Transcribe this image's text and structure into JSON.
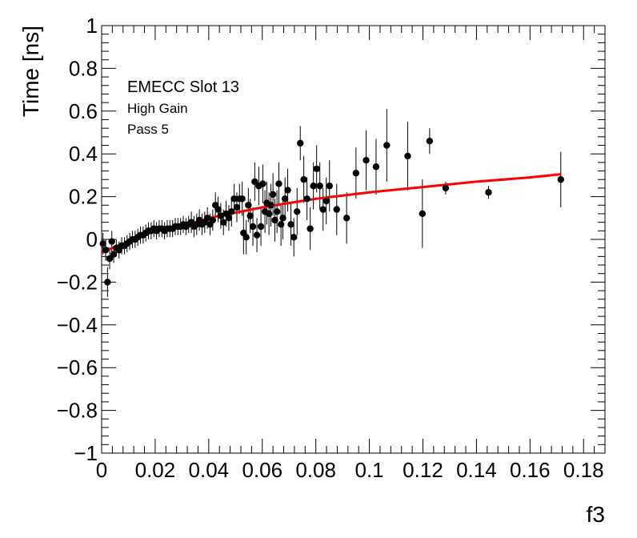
{
  "chart_data": {
    "type": "scatter",
    "xlabel": "f3",
    "ylabel": "Time [ns]",
    "xlim": [
      0,
      0.188
    ],
    "ylim": [
      -1,
      1
    ],
    "x_ticks": [
      0,
      0.02,
      0.04,
      0.06,
      0.08,
      0.1,
      0.12,
      0.14,
      0.16,
      0.18
    ],
    "x_tick_labels": [
      "0",
      "0.02",
      "0.04",
      "0.06",
      "0.08",
      "0.1",
      "0.12",
      "0.14",
      "0.16",
      "0.18"
    ],
    "y_ticks": [
      -1,
      -0.8,
      -0.6,
      -0.4,
      -0.2,
      0,
      0.2,
      0.4,
      0.6,
      0.8,
      1
    ],
    "y_tick_labels": [
      "−1",
      "−0.8",
      "−0.6",
      "−0.4",
      "−0.2",
      "0",
      "0.2",
      "0.4",
      "0.6",
      "0.8",
      "1"
    ],
    "annotations": [
      "EMECC Slot 13",
      "High Gain",
      "Pass 5"
    ],
    "grid": false,
    "colors": {
      "points": "#000000",
      "fit": "#ff0000"
    },
    "series": [
      {
        "kind": "points-with-errors",
        "points": [
          {
            "x": 0.0005,
            "y": -0.02,
            "e": 0.05
          },
          {
            "x": 0.0015,
            "y": -0.05,
            "e": 0.05
          },
          {
            "x": 0.0022,
            "y": -0.2,
            "e": 0.07
          },
          {
            "x": 0.003,
            "y": -0.09,
            "e": 0.05
          },
          {
            "x": 0.0038,
            "y": -0.01,
            "e": 0.05
          },
          {
            "x": 0.0045,
            "y": -0.07,
            "e": 0.04
          },
          {
            "x": 0.0055,
            "y": -0.04,
            "e": 0.04
          },
          {
            "x": 0.0065,
            "y": -0.05,
            "e": 0.04
          },
          {
            "x": 0.0075,
            "y": -0.03,
            "e": 0.04
          },
          {
            "x": 0.0085,
            "y": -0.03,
            "e": 0.04
          },
          {
            "x": 0.0095,
            "y": -0.02,
            "e": 0.04
          },
          {
            "x": 0.0105,
            "y": -0.01,
            "e": 0.04
          },
          {
            "x": 0.0115,
            "y": 0.0,
            "e": 0.04
          },
          {
            "x": 0.0125,
            "y": 0.0,
            "e": 0.04
          },
          {
            "x": 0.0135,
            "y": 0.01,
            "e": 0.04
          },
          {
            "x": 0.0145,
            "y": 0.02,
            "e": 0.04
          },
          {
            "x": 0.0155,
            "y": 0.02,
            "e": 0.04
          },
          {
            "x": 0.0165,
            "y": 0.03,
            "e": 0.04
          },
          {
            "x": 0.0175,
            "y": 0.04,
            "e": 0.04
          },
          {
            "x": 0.0185,
            "y": 0.04,
            "e": 0.04
          },
          {
            "x": 0.0195,
            "y": 0.05,
            "e": 0.04
          },
          {
            "x": 0.0205,
            "y": 0.04,
            "e": 0.04
          },
          {
            "x": 0.0215,
            "y": 0.05,
            "e": 0.04
          },
          {
            "x": 0.0225,
            "y": 0.05,
            "e": 0.04
          },
          {
            "x": 0.0235,
            "y": 0.04,
            "e": 0.04
          },
          {
            "x": 0.0245,
            "y": 0.05,
            "e": 0.04
          },
          {
            "x": 0.0255,
            "y": 0.05,
            "e": 0.04
          },
          {
            "x": 0.0265,
            "y": 0.05,
            "e": 0.04
          },
          {
            "x": 0.0275,
            "y": 0.06,
            "e": 0.04
          },
          {
            "x": 0.0285,
            "y": 0.06,
            "e": 0.04
          },
          {
            "x": 0.0295,
            "y": 0.06,
            "e": 0.04
          },
          {
            "x": 0.0305,
            "y": 0.07,
            "e": 0.04
          },
          {
            "x": 0.0315,
            "y": 0.06,
            "e": 0.04
          },
          {
            "x": 0.0325,
            "y": 0.07,
            "e": 0.04
          },
          {
            "x": 0.0335,
            "y": 0.08,
            "e": 0.05
          },
          {
            "x": 0.0345,
            "y": 0.06,
            "e": 0.05
          },
          {
            "x": 0.0355,
            "y": 0.07,
            "e": 0.05
          },
          {
            "x": 0.0365,
            "y": 0.09,
            "e": 0.05
          },
          {
            "x": 0.0375,
            "y": 0.07,
            "e": 0.05
          },
          {
            "x": 0.0385,
            "y": 0.08,
            "e": 0.05
          },
          {
            "x": 0.0395,
            "y": 0.1,
            "e": 0.05
          },
          {
            "x": 0.0405,
            "y": 0.07,
            "e": 0.05
          },
          {
            "x": 0.0415,
            "y": 0.09,
            "e": 0.05
          },
          {
            "x": 0.0425,
            "y": 0.16,
            "e": 0.06
          },
          {
            "x": 0.0435,
            "y": 0.14,
            "e": 0.06
          },
          {
            "x": 0.0445,
            "y": 0.11,
            "e": 0.06
          },
          {
            "x": 0.0455,
            "y": 0.08,
            "e": 0.06
          },
          {
            "x": 0.0465,
            "y": 0.12,
            "e": 0.06
          },
          {
            "x": 0.0475,
            "y": 0.1,
            "e": 0.06
          },
          {
            "x": 0.0485,
            "y": 0.13,
            "e": 0.07
          },
          {
            "x": 0.0495,
            "y": 0.19,
            "e": 0.07
          },
          {
            "x": 0.0505,
            "y": 0.15,
            "e": 0.07
          },
          {
            "x": 0.0515,
            "y": 0.19,
            "e": 0.07
          },
          {
            "x": 0.0525,
            "y": 0.19,
            "e": 0.08
          },
          {
            "x": 0.053,
            "y": 0.03,
            "e": 0.1
          },
          {
            "x": 0.054,
            "y": 0.01,
            "e": 0.08
          },
          {
            "x": 0.0548,
            "y": 0.16,
            "e": 0.08
          },
          {
            "x": 0.0555,
            "y": 0.11,
            "e": 0.08
          },
          {
            "x": 0.0565,
            "y": 0.06,
            "e": 0.09
          },
          {
            "x": 0.0572,
            "y": 0.27,
            "e": 0.09
          },
          {
            "x": 0.058,
            "y": 0.02,
            "e": 0.08
          },
          {
            "x": 0.0587,
            "y": 0.25,
            "e": 0.09
          },
          {
            "x": 0.0595,
            "y": 0.06,
            "e": 0.09
          },
          {
            "x": 0.0602,
            "y": 0.26,
            "e": 0.09
          },
          {
            "x": 0.061,
            "y": 0.13,
            "e": 0.1
          },
          {
            "x": 0.0617,
            "y": 0.17,
            "e": 0.1
          },
          {
            "x": 0.0625,
            "y": 0.12,
            "e": 0.1
          },
          {
            "x": 0.0632,
            "y": 0.16,
            "e": 0.1
          },
          {
            "x": 0.064,
            "y": 0.21,
            "e": 0.1
          },
          {
            "x": 0.0647,
            "y": 0.09,
            "e": 0.1
          },
          {
            "x": 0.0655,
            "y": 0.13,
            "e": 0.1
          },
          {
            "x": 0.0662,
            "y": 0.26,
            "e": 0.1
          },
          {
            "x": 0.067,
            "y": 0.07,
            "e": 0.1
          },
          {
            "x": 0.0677,
            "y": 0.1,
            "e": 0.1
          },
          {
            "x": 0.0685,
            "y": 0.19,
            "e": 0.1
          },
          {
            "x": 0.0695,
            "y": 0.23,
            "e": 0.1
          },
          {
            "x": 0.0707,
            "y": 0.07,
            "e": 0.1
          },
          {
            "x": 0.0718,
            "y": 0.01,
            "e": 0.09
          },
          {
            "x": 0.073,
            "y": 0.13,
            "e": 0.11
          },
          {
            "x": 0.0742,
            "y": 0.45,
            "e": 0.08
          },
          {
            "x": 0.0755,
            "y": 0.28,
            "e": 0.11
          },
          {
            "x": 0.0767,
            "y": 0.19,
            "e": 0.1
          },
          {
            "x": 0.0779,
            "y": 0.05,
            "e": 0.1
          },
          {
            "x": 0.0791,
            "y": 0.25,
            "e": 0.11
          },
          {
            "x": 0.0803,
            "y": 0.33,
            "e": 0.11
          },
          {
            "x": 0.0815,
            "y": 0.25,
            "e": 0.11
          },
          {
            "x": 0.0827,
            "y": 0.14,
            "e": 0.1
          },
          {
            "x": 0.0839,
            "y": 0.18,
            "e": 0.11
          },
          {
            "x": 0.0851,
            "y": 0.25,
            "e": 0.12
          },
          {
            "x": 0.0878,
            "y": 0.14,
            "e": 0.12
          },
          {
            "x": 0.0915,
            "y": 0.1,
            "e": 0.12
          },
          {
            "x": 0.095,
            "y": 0.31,
            "e": 0.12
          },
          {
            "x": 0.0988,
            "y": 0.37,
            "e": 0.14
          },
          {
            "x": 0.1025,
            "y": 0.34,
            "e": 0.13
          },
          {
            "x": 0.1065,
            "y": 0.44,
            "e": 0.17
          },
          {
            "x": 0.1143,
            "y": 0.39,
            "e": 0.16
          },
          {
            "x": 0.1198,
            "y": 0.12,
            "e": 0.16
          },
          {
            "x": 0.1225,
            "y": 0.46,
            "e": 0.06
          },
          {
            "x": 0.1285,
            "y": 0.24,
            "e": 0.03
          },
          {
            "x": 0.1445,
            "y": 0.22,
            "e": 0.03
          },
          {
            "x": 0.1715,
            "y": 0.28,
            "e": 0.13
          }
        ]
      },
      {
        "kind": "fit-line",
        "x": [
          0,
          0.01,
          0.02,
          0.03,
          0.04,
          0.06,
          0.08,
          0.1,
          0.12,
          0.14,
          0.16,
          0.1715
        ],
        "y": [
          -0.06,
          -0.01,
          0.04,
          0.06,
          0.1,
          0.15,
          0.19,
          0.22,
          0.245,
          0.27,
          0.29,
          0.305
        ]
      }
    ]
  }
}
